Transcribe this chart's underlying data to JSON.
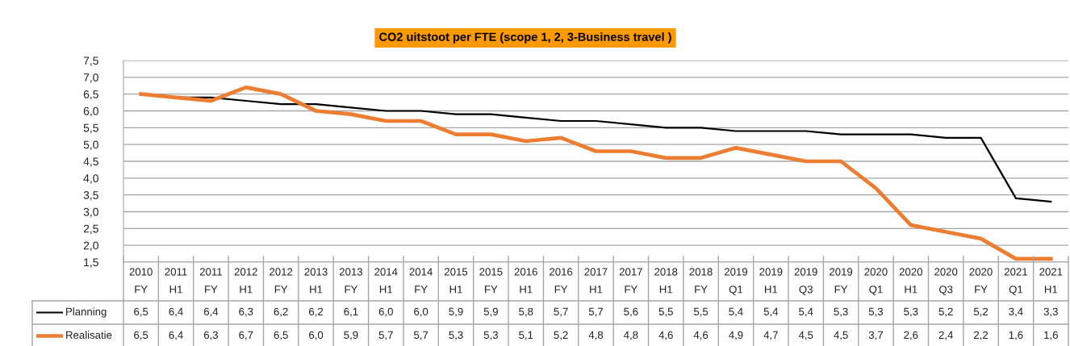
{
  "chart_data": {
    "type": "line",
    "title": "CO2 uitstoot per FTE (scope 1, 2, 3-Business travel )",
    "categories": [
      "2010\nFY",
      "2011\nH1",
      "2011\nFY",
      "2012\nH1",
      "2012\nFY",
      "2013\nH1",
      "2013\nFY",
      "2014\nH1",
      "2014\nFY",
      "2015\nH1",
      "2015\nFY",
      "2016\nH1",
      "2016\nFY",
      "2017\nH1",
      "2017\nFY",
      "2018\nH1",
      "2018\nFY",
      "2019\nQ1",
      "2019\nH1",
      "2019\nQ3",
      "2019\nFY",
      "2020\nQ1",
      "2020\nH1",
      "2020\nQ3",
      "2020\nFY",
      "2021\nQ1",
      "2021\nH1"
    ],
    "series": [
      {
        "name": "Planning",
        "color": "#000000",
        "values": [
          6.5,
          6.4,
          6.4,
          6.3,
          6.2,
          6.2,
          6.1,
          6.0,
          6.0,
          5.9,
          5.9,
          5.8,
          5.7,
          5.7,
          5.6,
          5.5,
          5.5,
          5.4,
          5.4,
          5.4,
          5.3,
          5.3,
          5.3,
          5.2,
          5.2,
          3.4,
          3.3
        ],
        "value_labels": [
          "6,5",
          "6,4",
          "6,4",
          "6,3",
          "6,2",
          "6,2",
          "6,1",
          "6,0",
          "6,0",
          "5,9",
          "5,9",
          "5,8",
          "5,7",
          "5,7",
          "5,6",
          "5,5",
          "5,5",
          "5,4",
          "5,4",
          "5,4",
          "5,3",
          "5,3",
          "5,3",
          "5,2",
          "5,2",
          "3,4",
          "3,3"
        ]
      },
      {
        "name": "Realisatie",
        "color": "#ed7d31",
        "values": [
          6.5,
          6.4,
          6.3,
          6.7,
          6.5,
          6.0,
          5.9,
          5.7,
          5.7,
          5.3,
          5.3,
          5.1,
          5.2,
          4.8,
          4.8,
          4.6,
          4.6,
          4.9,
          4.7,
          4.5,
          4.5,
          3.7,
          2.6,
          2.4,
          2.2,
          1.6,
          1.6
        ],
        "value_labels": [
          "6,5",
          "6,4",
          "6,3",
          "6,7",
          "6,5",
          "6,0",
          "5,9",
          "5,7",
          "5,7",
          "5,3",
          "5,3",
          "5,1",
          "5,2",
          "4,8",
          "4,8",
          "4,6",
          "4,6",
          "4,9",
          "4,7",
          "4,5",
          "4,5",
          "3,7",
          "2,6",
          "2,4",
          "2,2",
          "1,6",
          "1,6"
        ]
      }
    ],
    "ylim": [
      1.5,
      7.5
    ],
    "yticks": [
      {
        "value": 1.5,
        "label": "1,5"
      },
      {
        "value": 2.0,
        "label": "2,0"
      },
      {
        "value": 2.5,
        "label": "2,5"
      },
      {
        "value": 3.0,
        "label": "3,0"
      },
      {
        "value": 3.5,
        "label": "3,5"
      },
      {
        "value": 4.0,
        "label": "4,0"
      },
      {
        "value": 4.5,
        "label": "4,5"
      },
      {
        "value": 5.0,
        "label": "5,0"
      },
      {
        "value": 5.5,
        "label": "5,5"
      },
      {
        "value": 6.0,
        "label": "6,0"
      },
      {
        "value": 6.5,
        "label": "6,5"
      },
      {
        "value": 7.0,
        "label": "7,0"
      },
      {
        "value": 7.5,
        "label": "7,5"
      }
    ],
    "grid": "y",
    "legend": "bottom"
  }
}
